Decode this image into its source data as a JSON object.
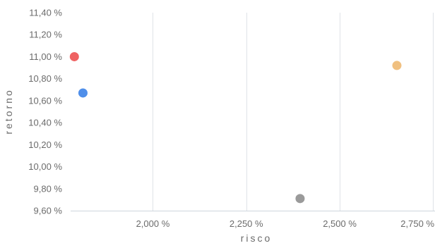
{
  "chart_data": {
    "type": "scatter",
    "title": "",
    "xlabel": "risco",
    "ylabel": "retorno",
    "xlim": [
      1.78,
      2.755
    ],
    "ylim": [
      9.6,
      11.4
    ],
    "x_ticks": [
      2.0,
      2.25,
      2.5,
      2.75
    ],
    "x_tick_labels": [
      "2,000 %",
      "2,250 %",
      "2,500 %",
      "2,750 %"
    ],
    "y_ticks": [
      9.6,
      9.8,
      10.0,
      10.2,
      10.4,
      10.6,
      10.8,
      11.0,
      11.2,
      11.4
    ],
    "y_tick_labels": [
      "9,60 %",
      "9,80 %",
      "10,00 %",
      "10,20 %",
      "10,40 %",
      "10,60 %",
      "10,80 %",
      "11,00 %",
      "11,20 %",
      "11,40 %"
    ],
    "grid": {
      "vertical": true,
      "horizontal": false
    },
    "points": [
      {
        "x": 1.79,
        "y": 11.0,
        "color": "#ef6262"
      },
      {
        "x": 1.813,
        "y": 10.67,
        "color": "#4f8fea"
      },
      {
        "x": 2.394,
        "y": 9.71,
        "color": "#9a9a9a"
      },
      {
        "x": 2.653,
        "y": 10.92,
        "color": "#f0c080"
      }
    ]
  }
}
